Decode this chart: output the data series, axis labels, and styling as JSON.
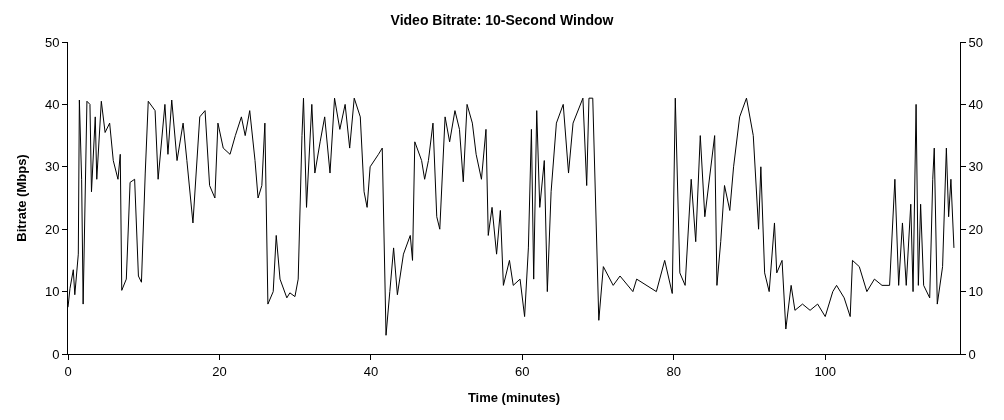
{
  "chart_data": {
    "type": "line",
    "title": "Video Bitrate: 10-Second Window",
    "xlabel": "Time (minutes)",
    "ylabel": "Bitrate (Mbps)",
    "x": [
      0,
      0.26,
      0.7,
      0.9,
      1.36,
      1.5,
      1.8,
      2.0,
      2.5,
      2.9,
      3.1,
      3.6,
      3.8,
      4.4,
      4.9,
      5.5,
      5.98,
      6.6,
      6.9,
      7.1,
      7.7,
      8.2,
      8.8,
      9.3,
      9.7,
      10.2,
      10.6,
      11.5,
      11.9,
      12.8,
      13.2,
      13.7,
      14.4,
      15.2,
      15.7,
      16.5,
      17.4,
      18.1,
      18.7,
      19.4,
      19.8,
      20.5,
      21.4,
      22.1,
      22.9,
      23.4,
      24,
      24.7,
      25.1,
      25.6,
      26,
      26.4,
      27.1,
      27.5,
      28,
      28.9,
      29.3,
      29.97,
      30.4,
      30.9,
      31.1,
      31.5,
      32.2,
      32.6,
      33.3,
      33.9,
      34.6,
      35.2,
      35.9,
      36.6,
      37.2,
      37.8,
      38.6,
      39.1,
      39.5,
      39.9,
      41,
      41.5,
      42,
      42.5,
      43,
      43.5,
      44.3,
      45.2,
      45.5,
      45.8,
      46.7,
      47.1,
      47.6,
      48.2,
      48.7,
      49.1,
      49.8,
      50.4,
      51.1,
      51.7,
      52.2,
      52.7,
      53.4,
      53.9,
      54.6,
      55.2,
      55.5,
      56,
      56.6,
      57.1,
      57.5,
      58.3,
      58.8,
      59.7,
      60.3,
      60.8,
      61.2,
      61.5,
      61.9,
      62.3,
      62.9,
      63.3,
      63.8,
      64.5,
      65.4,
      66.1,
      66.7,
      68,
      68.5,
      68.8,
      69.3,
      70.1,
      70.7,
      72,
      72.9,
      74.6,
      75.1,
      77.7,
      78.8,
      79.8,
      80.2,
      80.8,
      81.5,
      82.3,
      82.9,
      83.5,
      84.1,
      85.4,
      85.7,
      86.2,
      86.7,
      87.4,
      87.9,
      88.7,
      89.6,
      90.5,
      91.2,
      91.5,
      92,
      92.6,
      93.3,
      93.6,
      94.3,
      94.8,
      95.5,
      96,
      97,
      98,
      99,
      100,
      101,
      101.5,
      102.5,
      103.3,
      103.6,
      104.5,
      105.5,
      106.5,
      107.5,
      108.5,
      109.2,
      109.7,
      110.2,
      110.7,
      111.3,
      111.6,
      112,
      112.3,
      112.6,
      113,
      113.8,
      114.2,
      114.4,
      114.8,
      115.5,
      116,
      116.3,
      116.6,
      117
    ],
    "values": [
      7.5,
      10.5,
      13.5,
      9.5,
      16,
      40.7,
      28,
      8,
      40.5,
      40,
      26,
      38,
      28,
      40.5,
      35.5,
      37,
      31,
      28,
      32,
      10.2,
      12,
      27.5,
      28,
      12.5,
      11.5,
      29,
      40.5,
      39,
      28,
      40,
      32,
      40.7,
      31,
      37,
      31,
      21,
      38,
      39,
      27,
      25,
      37,
      33,
      32,
      35,
      38,
      35,
      39,
      31,
      25,
      27,
      37,
      8,
      10,
      19,
      12,
      9,
      9.8,
      9.2,
      12,
      35,
      41,
      23.5,
      40,
      29,
      34,
      38,
      29,
      41,
      36,
      40,
      33,
      41,
      38,
      26,
      23.5,
      30,
      32,
      33,
      3,
      10,
      17,
      9.5,
      16,
      19,
      15,
      34,
      31,
      28,
      31,
      37,
      22,
      20,
      38,
      34,
      39,
      36,
      27.6,
      40,
      37,
      32,
      28,
      36,
      19,
      23.5,
      16,
      23,
      11,
      15,
      11,
      12,
      6,
      17,
      36,
      12,
      39,
      23.5,
      31,
      10,
      26,
      37,
      40,
      29,
      37,
      41,
      27,
      41,
      41,
      5.4,
      14,
      11,
      12.5,
      10,
      12,
      10,
      15,
      9.7,
      41,
      13,
      11,
      28,
      18,
      35,
      22,
      35,
      11,
      18,
      27,
      23,
      30,
      38,
      41,
      35,
      20,
      30,
      13,
      10,
      21,
      13,
      15,
      4,
      11,
      7,
      8,
      7,
      8,
      6,
      10,
      11,
      9,
      6,
      15,
      14,
      10,
      12,
      11,
      11,
      28,
      11,
      21,
      11,
      24,
      10,
      40,
      11,
      24,
      11,
      9,
      28,
      33,
      8,
      14,
      33,
      22,
      28,
      17
    ],
    "color": "#000000",
    "xlim": [
      0,
      117.8
    ],
    "xticks": [
      0,
      20,
      40,
      60,
      80,
      100
    ],
    "ylim": [
      0,
      50
    ],
    "yticks": [
      0,
      10,
      20,
      30,
      40,
      50
    ],
    "y2lim": [
      0,
      50
    ],
    "y2ticks": [
      0,
      10,
      20,
      30,
      40,
      50
    ]
  }
}
